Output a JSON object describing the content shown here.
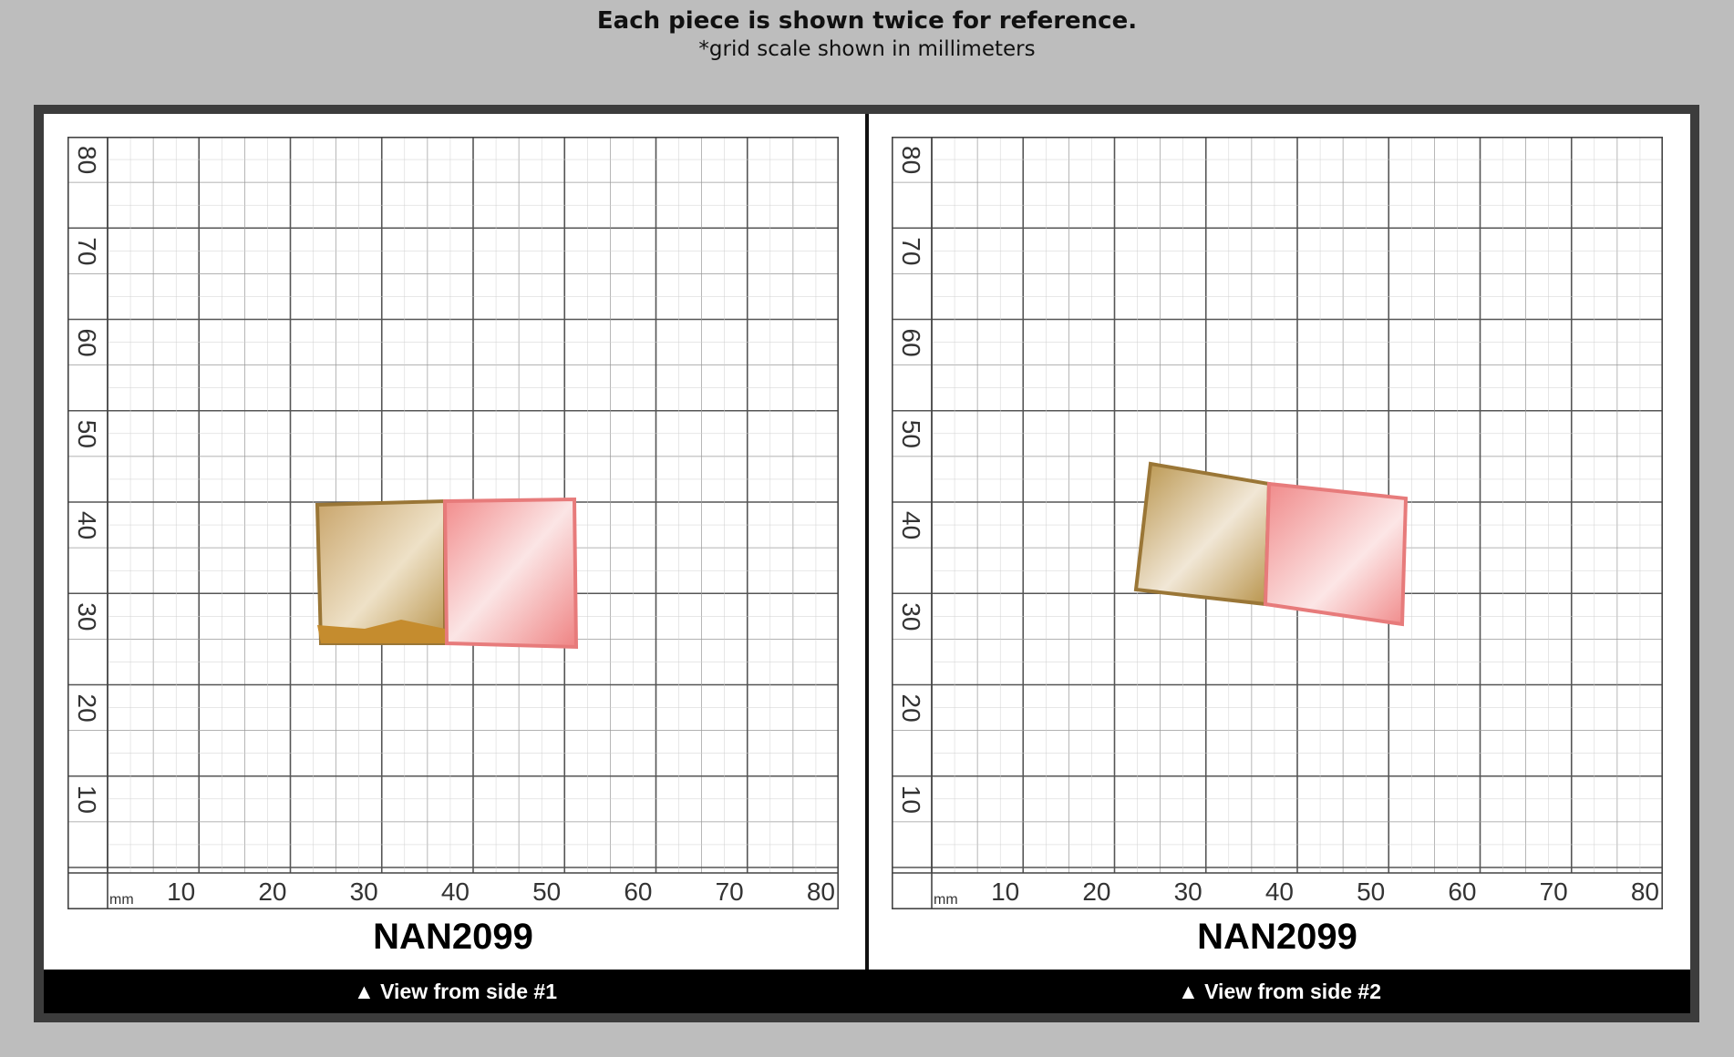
{
  "header": {
    "title": "Each piece is shown twice for reference.",
    "subtitle": "*grid scale shown in millimeters"
  },
  "panels": [
    {
      "code": "NAN2099",
      "caption": "▲ View from side #1",
      "unit": "mm",
      "x_ticks": [
        "10",
        "20",
        "30",
        "40",
        "50",
        "60",
        "70",
        "80"
      ],
      "y_ticks": [
        "10",
        "20",
        "30",
        "40",
        "50",
        "60",
        "70",
        "80"
      ]
    },
    {
      "code": "NAN2099",
      "caption": "▲ View from side #2",
      "unit": "mm",
      "x_ticks": [
        "10",
        "20",
        "30",
        "40",
        "50",
        "60",
        "70",
        "80"
      ],
      "y_ticks": [
        "10",
        "20",
        "30",
        "40",
        "50",
        "60",
        "70",
        "80"
      ]
    }
  ],
  "colors": {
    "background": "#bdbdbd",
    "frame": "#3c3c3c",
    "stone_gold": "#b8934a",
    "stone_pink": "#f08a8a"
  }
}
